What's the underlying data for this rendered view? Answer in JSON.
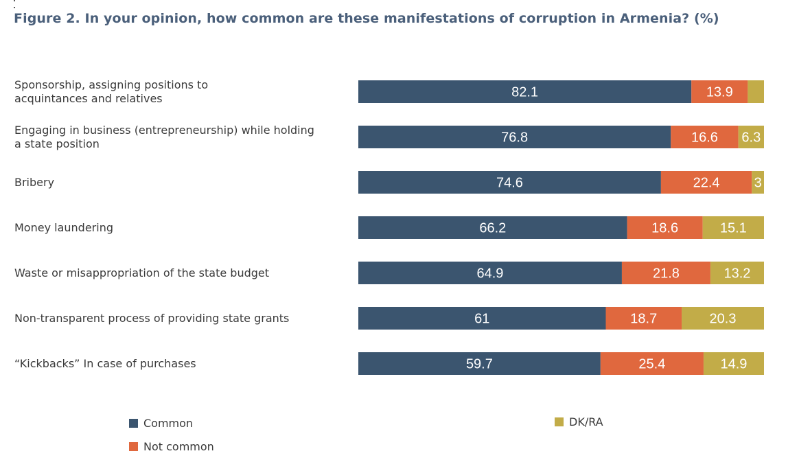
{
  "chart_data": {
    "type": "bar",
    "orientation": "horizontal",
    "stacked": true,
    "title": "Figure 2. In your opinion, how common are these manifestations of corruption in Armenia? (%)",
    "xlabel": "",
    "ylabel": "",
    "xlim": [
      0,
      100
    ],
    "grid": false,
    "legend_position": "bottom",
    "categories": [
      "Sponsorship, assigning positions to acquintances and relatives",
      "Engaging in business (entrepreneurship) while holding a state position",
      "Bribery",
      "Money laundering",
      "Waste or misappropriation of the state budget",
      "Non-transparent process of providing state grants",
      "“Kickbacks” In case of purchases"
    ],
    "category_lines": [
      [
        "Sponsorship, assigning positions to",
        "acquintances and relatives"
      ],
      [
        "Engaging in business (entrepreneurship) while holding",
        "a state position"
      ],
      [
        "Bribery"
      ],
      [
        "Money laundering"
      ],
      [
        "Waste or misappropriation of the state budget"
      ],
      [
        "Non-transparent process of providing state grants"
      ],
      [
        "“Kickbacks” In case of purchases"
      ]
    ],
    "series": [
      {
        "name": "Common",
        "color": "#3b556f",
        "values": [
          82.1,
          76.8,
          74.6,
          66.2,
          64.9,
          61,
          59.7
        ],
        "labels": [
          "82.1",
          "76.8",
          "74.6",
          "66.2",
          "64.9",
          "61",
          "59.7"
        ]
      },
      {
        "name": "Not common",
        "color": "#e0683e",
        "values": [
          13.9,
          16.6,
          22.4,
          18.6,
          21.8,
          18.7,
          25.4
        ],
        "labels": [
          "13.9",
          "16.6",
          "22.4",
          "18.6",
          "21.8",
          "18.7",
          "25.4"
        ]
      },
      {
        "name": "DK/RA",
        "color": "#c2ac48",
        "values": [
          4.0,
          6.3,
          3,
          15.1,
          13.2,
          20.3,
          14.9
        ],
        "labels": [
          "",
          "6.3",
          "3",
          "15.1",
          "13.2",
          "20.3",
          "14.9"
        ]
      }
    ]
  },
  "legend": {
    "items": [
      {
        "label": "Common",
        "color": "#3b556f"
      },
      {
        "label": "Not common",
        "color": "#e0683e"
      },
      {
        "label": "DK/RA",
        "color": "#c2ac48"
      }
    ]
  }
}
